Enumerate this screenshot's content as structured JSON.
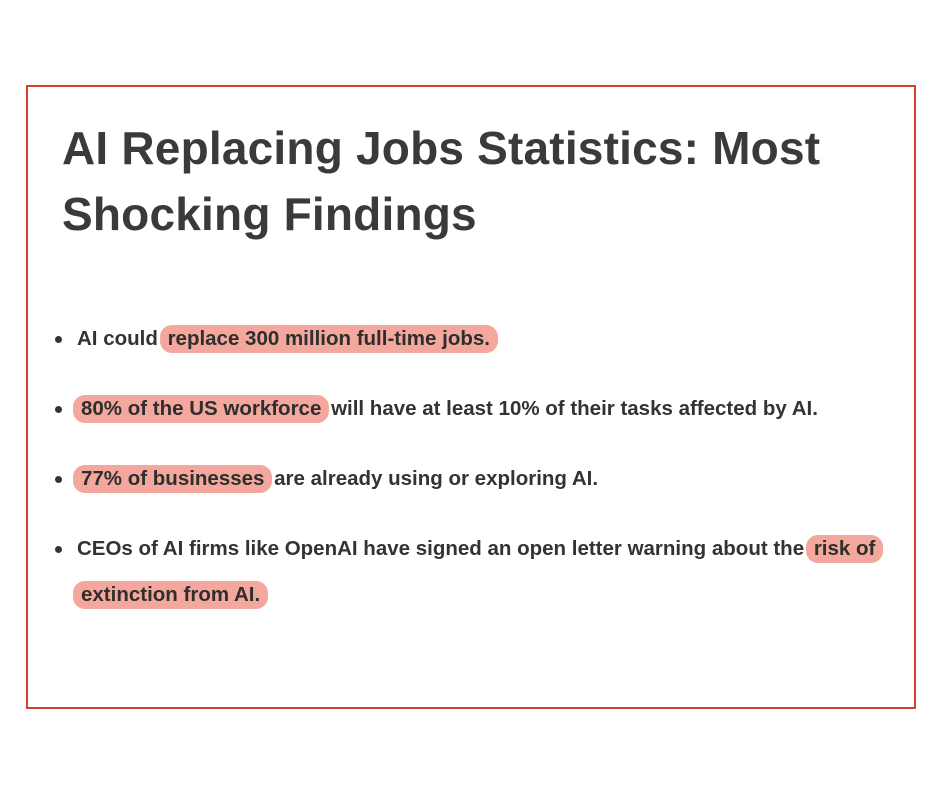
{
  "title": "AI Replacing Jobs Statistics: Most Shocking Findings",
  "bullets": [
    {
      "before": "AI could ",
      "highlight": "replace 300 million full-time jobs.",
      "after": ""
    },
    {
      "before": "",
      "highlight": "80% of the US workforce",
      "after": " will have at least 10% of their tasks affected by AI."
    },
    {
      "before": "",
      "highlight": "77% of businesses",
      "after": " are already using or exploring AI."
    },
    {
      "before": "CEOs of AI firms like OpenAI have signed an open letter warning about the ",
      "highlight": "risk of extinction from AI.",
      "after": ""
    }
  ],
  "colors": {
    "border": "#d9412f",
    "highlight": "#f4a89d",
    "text": "#333333"
  }
}
